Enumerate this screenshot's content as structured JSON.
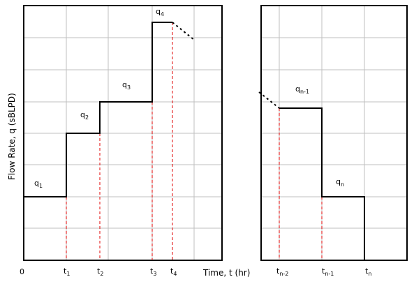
{
  "chart_data": {
    "type": "step",
    "xlabel": "Time, t (hr)",
    "ylabel": "Flow Rate, q (sBLPD)",
    "origin_label": "0",
    "colors": {
      "frame": "#000000",
      "grid": "#bfbfbf",
      "step": "#000000",
      "marker": "#e00000"
    },
    "panels": [
      {
        "name": "left-panel",
        "times": [
          {
            "base": "t",
            "sub": "1"
          },
          {
            "base": "t",
            "sub": "2"
          },
          {
            "base": "t",
            "sub": "3"
          },
          {
            "base": "t",
            "sub": "4"
          }
        ],
        "rates": [
          {
            "base": "q",
            "sub": "1"
          },
          {
            "base": "q",
            "sub": "2"
          },
          {
            "base": "q",
            "sub": "3"
          },
          {
            "base": "q",
            "sub": "4"
          }
        ]
      },
      {
        "name": "right-panel",
        "times": [
          {
            "base": "t",
            "sub": "n-2"
          },
          {
            "base": "t",
            "sub": "n-1"
          },
          {
            "base": "t",
            "sub": "n"
          }
        ],
        "rates": [
          {
            "base": "q",
            "sub": "n-1"
          },
          {
            "base": "q",
            "sub": "n"
          }
        ]
      }
    ]
  }
}
